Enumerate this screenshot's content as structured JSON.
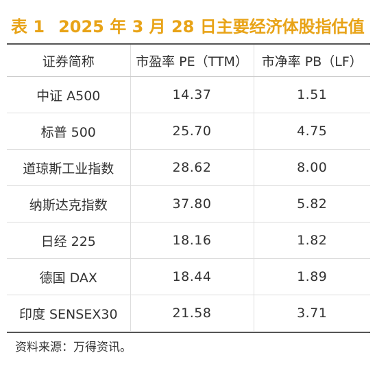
{
  "title": {
    "label": "表 1",
    "text": "2025 年 3 月 28 日主要经济体股指估值"
  },
  "table": {
    "headers": [
      "证券简称",
      "市盈率 PE（TTM）",
      "市净率 PB（LF）"
    ],
    "rows": [
      {
        "name": "中证 A500",
        "pe": "14.37",
        "pb": "1.51"
      },
      {
        "name": "标普 500",
        "pe": "25.70",
        "pb": "4.75"
      },
      {
        "name": "道琼斯工业指数",
        "pe": "28.62",
        "pb": "8.00"
      },
      {
        "name": "纳斯达克指数",
        "pe": "37.80",
        "pb": "5.82"
      },
      {
        "name": "日经 225",
        "pe": "18.16",
        "pb": "1.82"
      },
      {
        "name": "德国 DAX",
        "pe": "18.44",
        "pb": "1.89"
      },
      {
        "name": "印度 SENSEX30",
        "pe": "21.58",
        "pb": "3.71"
      }
    ]
  },
  "source": "资料来源：万得资讯。",
  "colors": {
    "title": "#E8A317",
    "text": "#333333",
    "rule": "#555555"
  }
}
